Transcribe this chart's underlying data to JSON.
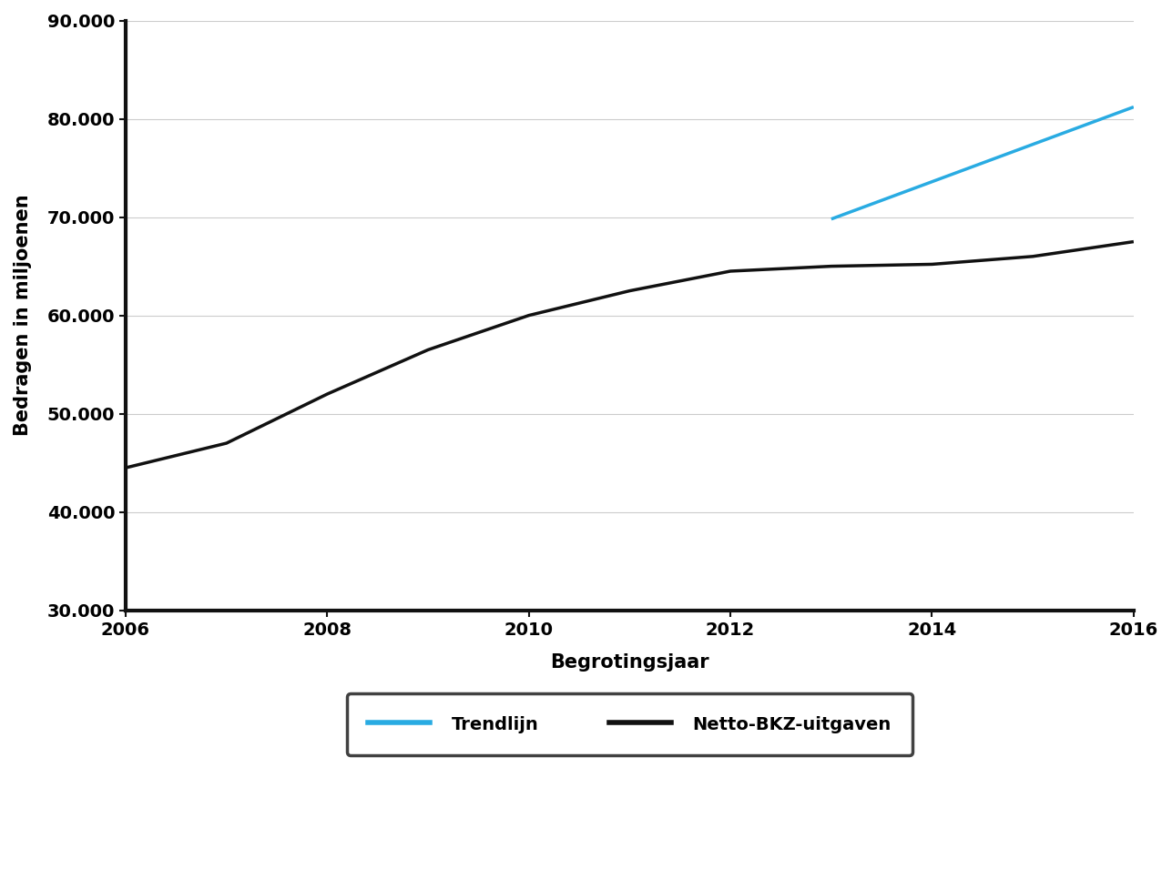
{
  "title": "",
  "xlabel": "Begrotingsjaar",
  "ylabel": "Bedragen in miljoenen",
  "ylim": [
    30000,
    90000
  ],
  "xlim": [
    2006,
    2016
  ],
  "yticks": [
    30000,
    40000,
    50000,
    60000,
    70000,
    80000,
    90000
  ],
  "xticks": [
    2006,
    2008,
    2010,
    2012,
    2014,
    2016
  ],
  "netto_x": [
    2006,
    2007,
    2008,
    2009,
    2010,
    2011,
    2012,
    2013,
    2014,
    2015,
    2016
  ],
  "netto_y": [
    44500,
    47000,
    52000,
    56500,
    60000,
    62500,
    64500,
    65000,
    65200,
    66000,
    67500
  ],
  "trend_x": [
    2013.0,
    2016
  ],
  "trend_y": [
    69800,
    81200
  ],
  "netto_color": "#111111",
  "trend_color": "#29ABE2",
  "netto_linewidth": 2.5,
  "trend_linewidth": 2.5,
  "legend_label_trend": "Trendlijn",
  "legend_label_netto": "Netto-BKZ-uitgaven",
  "grid_color": "#cccccc",
  "background_color": "#ffffff",
  "plot_area_color": "#ffffff",
  "axis_label_fontsize": 15,
  "tick_fontsize": 14,
  "legend_fontsize": 14,
  "spine_linewidth": 3.0
}
